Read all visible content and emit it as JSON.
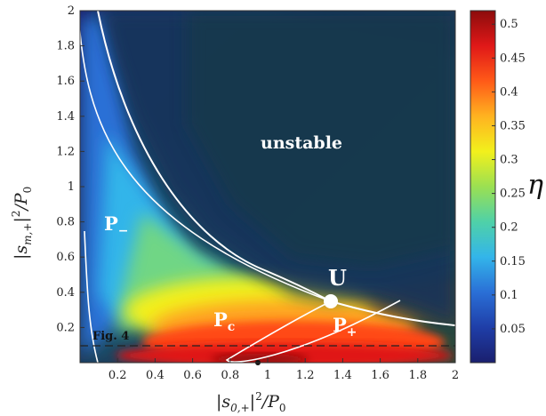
{
  "chart_data": {
    "type": "heatmap",
    "xlabel_parts": {
      "pre": "|s",
      "sub": "0,+",
      "mid": "|",
      "sup": "2",
      "post": "/P",
      "sub2": "0"
    },
    "ylabel_parts": {
      "pre": "|s",
      "sub": "m,+",
      "mid": "|",
      "sup": "2",
      "post": "/P",
      "sub2": "0"
    },
    "xlim": [
      0,
      2
    ],
    "ylim": [
      0,
      2
    ],
    "x_ticks": [
      {
        "value": 0.2,
        "label": "0.2"
      },
      {
        "value": 0.4,
        "label": "0.4"
      },
      {
        "value": 0.6,
        "label": "0.6"
      },
      {
        "value": 0.8,
        "label": "0.8"
      },
      {
        "value": 1.0,
        "label": "1"
      },
      {
        "value": 1.2,
        "label": "1.2"
      },
      {
        "value": 1.4,
        "label": "1.4"
      },
      {
        "value": 1.6,
        "label": "1.6"
      },
      {
        "value": 1.8,
        "label": "1.8"
      },
      {
        "value": 2.0,
        "label": "2"
      }
    ],
    "y_ticks": [
      {
        "value": 0.2,
        "label": "0.2"
      },
      {
        "value": 0.4,
        "label": "0.4"
      },
      {
        "value": 0.6,
        "label": "0.6"
      },
      {
        "value": 0.8,
        "label": "0.8"
      },
      {
        "value": 1.0,
        "label": "1"
      },
      {
        "value": 1.2,
        "label": "1.2"
      },
      {
        "value": 1.4,
        "label": "1.4"
      },
      {
        "value": 1.6,
        "label": "1.6"
      },
      {
        "value": 1.8,
        "label": "1.8"
      },
      {
        "value": 2.0,
        "label": "2"
      }
    ],
    "colorbar": {
      "label": "η",
      "range": [
        0,
        0.52
      ],
      "ticks": [
        {
          "value": 0.05,
          "label": "0.05"
        },
        {
          "value": 0.1,
          "label": "0.1"
        },
        {
          "value": 0.15,
          "label": "0.15"
        },
        {
          "value": 0.2,
          "label": "0.2"
        },
        {
          "value": 0.25,
          "label": "0.25"
        },
        {
          "value": 0.3,
          "label": "0.3"
        },
        {
          "value": 0.35,
          "label": "0.35"
        },
        {
          "value": 0.4,
          "label": "0.4"
        },
        {
          "value": 0.45,
          "label": "0.45"
        },
        {
          "value": 0.5,
          "label": "0.5"
        }
      ],
      "colormap": [
        "#1a1f6e",
        "#1f3ea8",
        "#2a6fd6",
        "#33b5ea",
        "#4fd1a8",
        "#9be052",
        "#f2f01c",
        "#ffb320",
        "#ff5a18",
        "#e01818",
        "#8c0c0c"
      ]
    },
    "stability_boundary": {
      "x": [
        0.05,
        0.12,
        0.3,
        0.5,
        0.75,
        1.0,
        1.37,
        1.7,
        2.0
      ],
      "y": [
        2.0,
        1.45,
        0.95,
        0.75,
        0.55,
        0.45,
        0.37,
        0.3,
        0.25
      ]
    },
    "region_labels": {
      "unstable": "unstable",
      "p_minus": {
        "main": "P",
        "sub": "−"
      },
      "p_c": {
        "main": "P",
        "sub": "c"
      },
      "p_plus": {
        "main": "P",
        "sub": "+"
      },
      "u": "U"
    },
    "special_point": {
      "name": "U",
      "x": 1.37,
      "y": 0.37
    },
    "reference_line": {
      "label": "Fig. 4",
      "y": 0.1,
      "style": "dashed"
    }
  }
}
